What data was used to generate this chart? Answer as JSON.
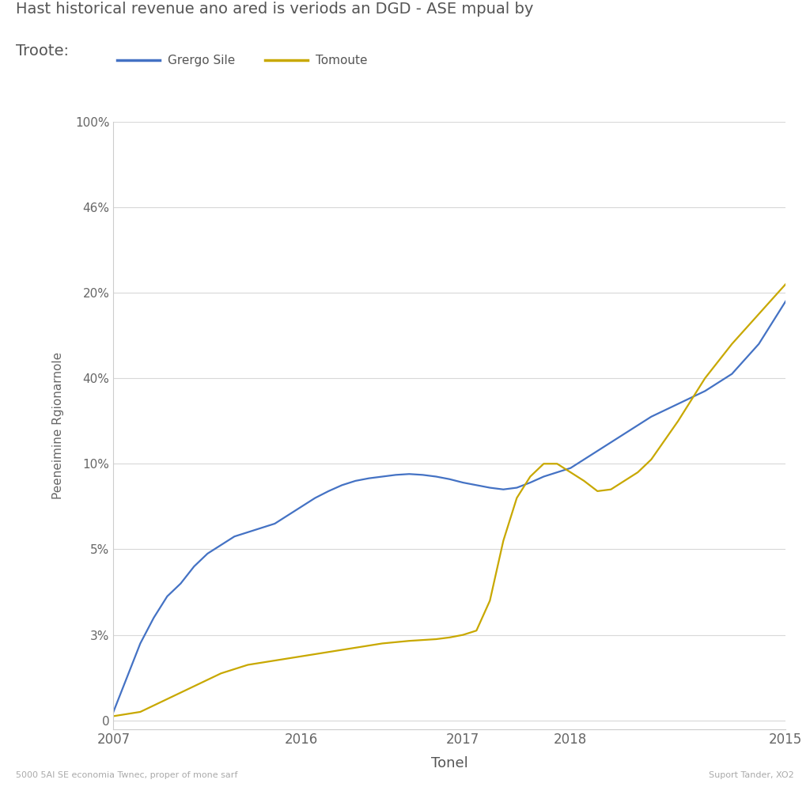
{
  "title_line1": "Hast historical revenue ano ared is veriods an DGD - ASE mpual by",
  "title_line2": "Troote:",
  "xlabel": "Tonel",
  "ylabel": "Peeneimine Rgionarnole",
  "footnote_left": "5000 5AI SE economia Twnec, proper of mone sarf",
  "footnote_right": "Suport Tander, XO2",
  "legend_labels": [
    "Grergo Sile",
    "Tomoute"
  ],
  "line1_color": "#4472C4",
  "line2_color": "#C8A800",
  "background_color": "#ffffff",
  "x_tick_labels": [
    "2007",
    "2016",
    "2017",
    "2018",
    "2015"
  ],
  "x_tick_positions": [
    0,
    0.28,
    0.52,
    0.68,
    1.0
  ],
  "y_tick_labels": [
    "0",
    "3%",
    "5%",
    "10%",
    "40%",
    "20%",
    "46%",
    "100%"
  ],
  "y_tick_positions": [
    0,
    1,
    2,
    3,
    4,
    5,
    6,
    7
  ],
  "line1_x": [
    0.0,
    0.02,
    0.04,
    0.06,
    0.08,
    0.1,
    0.12,
    0.14,
    0.16,
    0.18,
    0.2,
    0.22,
    0.24,
    0.26,
    0.28,
    0.3,
    0.32,
    0.34,
    0.36,
    0.38,
    0.4,
    0.42,
    0.44,
    0.46,
    0.48,
    0.5,
    0.52,
    0.54,
    0.56,
    0.58,
    0.6,
    0.62,
    0.64,
    0.66,
    0.68,
    0.7,
    0.72,
    0.74,
    0.76,
    0.78,
    0.8,
    0.84,
    0.88,
    0.92,
    0.96,
    1.0
  ],
  "line1_y": [
    0.1,
    0.5,
    0.9,
    1.2,
    1.45,
    1.6,
    1.8,
    1.95,
    2.05,
    2.15,
    2.2,
    2.25,
    2.3,
    2.4,
    2.5,
    2.6,
    2.68,
    2.75,
    2.8,
    2.83,
    2.85,
    2.87,
    2.88,
    2.87,
    2.85,
    2.82,
    2.78,
    2.75,
    2.72,
    2.7,
    2.72,
    2.78,
    2.85,
    2.9,
    2.95,
    3.05,
    3.15,
    3.25,
    3.35,
    3.45,
    3.55,
    3.7,
    3.85,
    4.05,
    4.4,
    4.9
  ],
  "line2_x": [
    0.0,
    0.04,
    0.08,
    0.12,
    0.16,
    0.2,
    0.24,
    0.28,
    0.32,
    0.36,
    0.4,
    0.44,
    0.48,
    0.5,
    0.52,
    0.54,
    0.56,
    0.58,
    0.6,
    0.62,
    0.64,
    0.66,
    0.68,
    0.7,
    0.72,
    0.74,
    0.76,
    0.78,
    0.8,
    0.84,
    0.88,
    0.92,
    0.96,
    1.0
  ],
  "line2_y": [
    0.05,
    0.1,
    0.25,
    0.4,
    0.55,
    0.65,
    0.7,
    0.75,
    0.8,
    0.85,
    0.9,
    0.93,
    0.95,
    0.97,
    1.0,
    1.05,
    1.4,
    2.1,
    2.6,
    2.85,
    3.0,
    3.0,
    2.9,
    2.8,
    2.68,
    2.7,
    2.8,
    2.9,
    3.05,
    3.5,
    4.0,
    4.4,
    4.75,
    5.1
  ]
}
